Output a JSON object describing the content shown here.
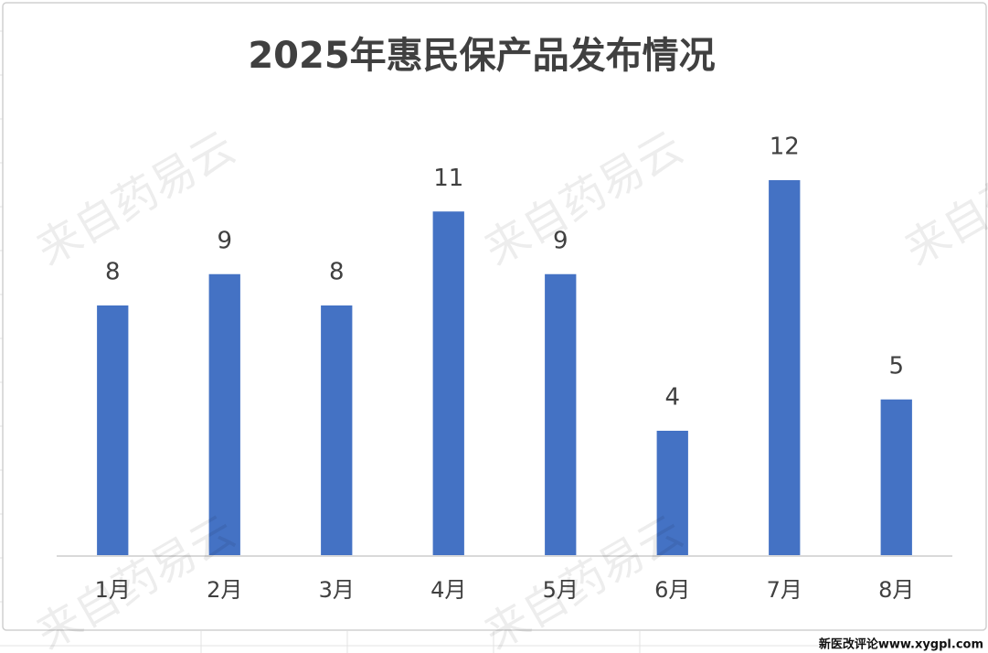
{
  "chart_data": {
    "type": "bar",
    "title": "2025年惠民保产品发布情况",
    "categories": [
      "1月",
      "2月",
      "3月",
      "4月",
      "5月",
      "6月",
      "7月",
      "8月"
    ],
    "values": [
      8,
      9,
      8,
      11,
      9,
      4,
      12,
      5
    ],
    "color": "#4472c4",
    "ylim": [
      0,
      16
    ],
    "watermark": "来自药易云",
    "source": "新医改评论www.xygpl.com"
  }
}
